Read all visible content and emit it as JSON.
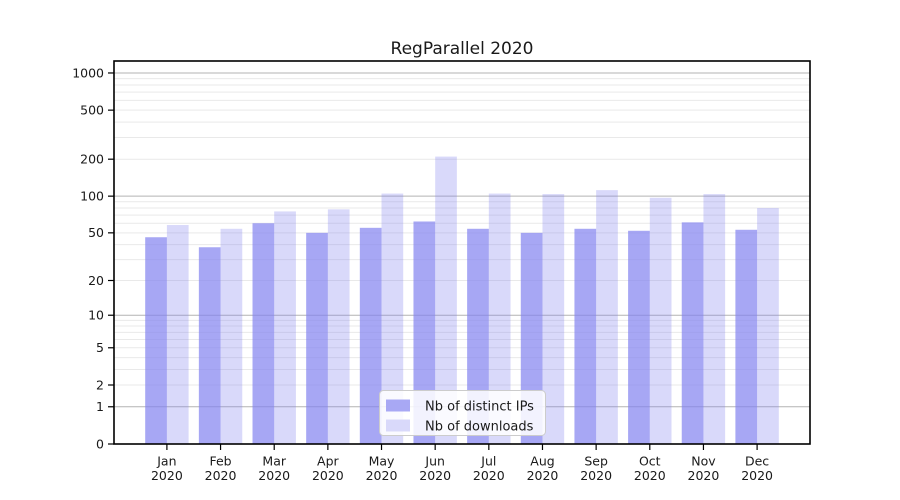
{
  "chart_data": {
    "type": "bar",
    "title": "RegParallel 2020",
    "categories": [
      "Jan 2020",
      "Feb 2020",
      "Mar 2020",
      "Apr 2020",
      "May 2020",
      "Jun 2020",
      "Jul 2020",
      "Aug 2020",
      "Sep 2020",
      "Oct 2020",
      "Nov 2020",
      "Dec 2020"
    ],
    "month_labels": [
      "Jan",
      "Feb",
      "Mar",
      "Apr",
      "May",
      "Jun",
      "Jul",
      "Aug",
      "Sep",
      "Oct",
      "Nov",
      "Dec"
    ],
    "year_label": "2020",
    "series": [
      {
        "name": "Nb of distinct IPs",
        "base_color": "#8282f0",
        "alpha": 0.7,
        "swatch": "#a8a8f4",
        "values": [
          46,
          38,
          60,
          50,
          55,
          62,
          54,
          50,
          54,
          52,
          61,
          53
        ]
      },
      {
        "name": "Nb of downloads",
        "base_color": "#8282f0",
        "alpha": 0.3,
        "swatch": "#d9d9fa",
        "values": [
          58,
          54,
          75,
          78,
          105,
          210,
          105,
          104,
          112,
          97,
          104,
          80
        ]
      }
    ],
    "yscale": "log1p",
    "ylim": [
      0,
      1250
    ],
    "y_ticks": [
      0,
      1,
      2,
      5,
      10,
      20,
      50,
      100,
      200,
      500,
      1000
    ],
    "grid": {
      "major_values": [
        1,
        10,
        100,
        1000
      ],
      "minor_multiples": [
        2,
        3,
        4,
        5,
        6,
        7,
        8,
        9
      ],
      "minor_decades": [
        1,
        10,
        100
      ],
      "major_color": "#b3b3b3",
      "minor_color": "#e9e9e9",
      "frame_color": "#000000"
    },
    "legend": {
      "position": "lower-center",
      "box_fill": "#ffffff",
      "box_border": "#cccccc"
    }
  }
}
